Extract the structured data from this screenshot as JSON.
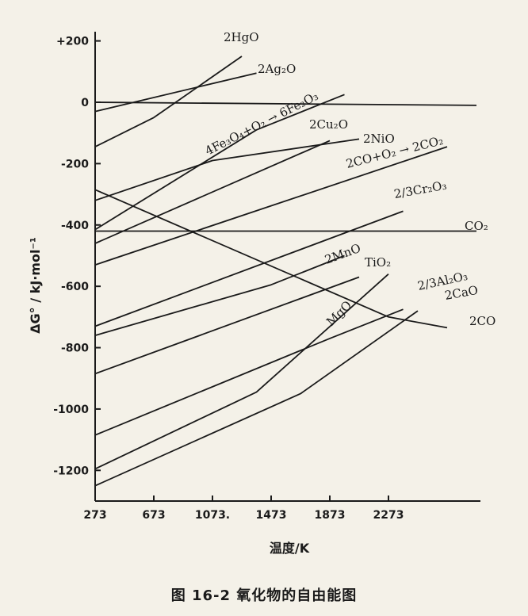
{
  "chart_data": {
    "type": "line",
    "caption": "图  16-2   氧化物的自由能图",
    "xlabel": "温度/K",
    "ylabel": "ΔG° / kJ·mol⁻¹",
    "xlim": [
      273,
      2900
    ],
    "ylim": [
      -1300,
      230
    ],
    "xticks": [
      273,
      673,
      1073,
      1473,
      1873,
      2273
    ],
    "xtick_labels": [
      "273",
      "673",
      "1073.",
      "1473",
      "1873",
      "2273"
    ],
    "yticks": [
      200,
      0,
      -200,
      -400,
      -600,
      -800,
      -1000,
      -1200
    ],
    "ytick_labels": [
      "+200",
      "0",
      "-200",
      "-400",
      "-600",
      "-800",
      "-1000",
      "-1200"
    ],
    "grid": false,
    "legend": "none",
    "series": [
      {
        "name": "2HgO",
        "points": [
          [
            273,
            -145
          ],
          [
            673,
            -50
          ],
          [
            1273,
            150
          ]
        ]
      },
      {
        "name": "2Ag₂O",
        "points": [
          [
            273,
            -30
          ],
          [
            1373,
            95
          ]
        ]
      },
      {
        "name": "4Fe₃O₄+O₂ → 6Fe₂O₃",
        "points": [
          [
            273,
            -415
          ],
          [
            1373,
            -90
          ],
          [
            1973,
            25
          ]
        ]
      },
      {
        "name": "2Cu₂O",
        "points": [
          [
            273,
            -320
          ],
          [
            1073,
            -190
          ],
          [
            2073,
            -120
          ]
        ]
      },
      {
        "name": "2NiO",
        "points": [
          [
            273,
            -460
          ],
          [
            1873,
            -125
          ]
        ]
      },
      {
        "name": "2CO+O₂ → 2CO₂",
        "points": [
          [
            273,
            -530
          ],
          [
            2673,
            -145
          ]
        ]
      },
      {
        "name": "2/3Cr₂O₃",
        "points": [
          [
            273,
            -730
          ],
          [
            2373,
            -355
          ]
        ]
      },
      {
        "name": "CO₂",
        "points": [
          [
            273,
            -420
          ],
          [
            2873,
            -420
          ]
        ]
      },
      {
        "name": "2MnO",
        "points": [
          [
            273,
            -760
          ],
          [
            1473,
            -595
          ],
          [
            1973,
            -500
          ]
        ]
      },
      {
        "name": "TiO₂",
        "points": [
          [
            273,
            -885
          ],
          [
            2073,
            -570
          ]
        ]
      },
      {
        "name": "2/3Al₂O₃",
        "points": [
          [
            273,
            -1085
          ],
          [
            1873,
            -770
          ],
          [
            2373,
            -675
          ]
        ]
      },
      {
        "name": "2CaO",
        "points": [
          [
            273,
            -1250
          ],
          [
            1673,
            -950
          ],
          [
            2473,
            -680
          ]
        ]
      },
      {
        "name": "MgO",
        "points": [
          [
            273,
            -1195
          ],
          [
            1373,
            -945
          ],
          [
            2273,
            -560
          ]
        ]
      },
      {
        "name": "2CO",
        "points": [
          [
            273,
            -285
          ],
          [
            2273,
            -700
          ],
          [
            2673,
            -735
          ]
        ]
      },
      {
        "name": "",
        "points": [
          [
            273,
            0
          ],
          [
            2873,
            -10
          ]
        ]
      }
    ]
  }
}
